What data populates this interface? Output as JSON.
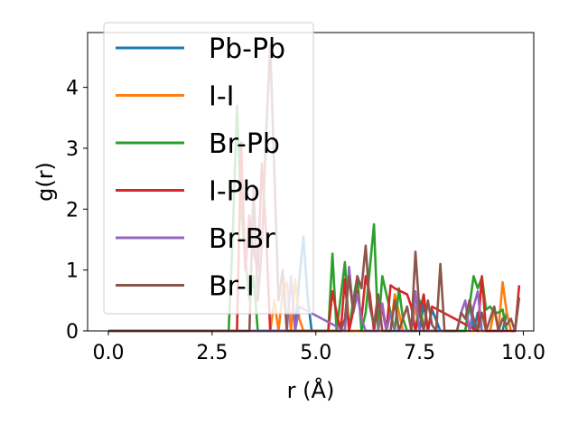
{
  "chart_data": {
    "type": "line",
    "xlabel": "r (Å)",
    "ylabel": "g(r)",
    "xlim": [
      -0.5,
      10.25
    ],
    "ylim": [
      0,
      4.9
    ],
    "xticks": [
      "0.0",
      "2.5",
      "5.0",
      "7.5",
      "10.0"
    ],
    "xtick_values": [
      0,
      2.5,
      5,
      7.5,
      10
    ],
    "yticks": [
      "0",
      "1",
      "2",
      "3",
      "4"
    ],
    "ytick_values": [
      0,
      1,
      2,
      3,
      4
    ],
    "grid": false,
    "legend_position": "upper-left",
    "series": [
      {
        "name": "Pb-Pb",
        "color": "#1f77b4",
        "x": [
          0,
          2.9,
          4.5,
          4.6,
          4.7,
          4.8,
          4.9,
          7.5,
          7.6,
          7.7,
          7.8,
          8.0,
          8.2,
          8.6,
          8.7,
          8.8,
          8.9,
          9.0,
          9.1,
          9.5,
          9.6,
          9.7,
          9.8
        ],
        "y": [
          0,
          0,
          0,
          0.85,
          1.55,
          0.55,
          0,
          0,
          0.45,
          0,
          0.35,
          0,
          0,
          0,
          0.5,
          0,
          0.3,
          0,
          0,
          0,
          0.3,
          0,
          0
        ]
      },
      {
        "name": "I-I",
        "color": "#ff7f0e",
        "x": [
          0,
          3.9,
          4.0,
          4.1,
          4.2,
          4.3,
          4.4,
          4.5,
          4.6,
          4.7,
          6.8,
          6.9,
          7.0,
          7.1,
          7.3,
          7.4,
          7.5,
          9.2,
          9.3,
          9.4,
          9.5,
          9.6,
          9.7,
          9.8
        ],
        "y": [
          0,
          0,
          0.5,
          0,
          0.65,
          0.8,
          0,
          0.85,
          0.2,
          0,
          0,
          0.6,
          0.3,
          0,
          0,
          0.4,
          0,
          0,
          0.35,
          0,
          0.8,
          0.3,
          0,
          0
        ]
      },
      {
        "name": "Br-Pb",
        "color": "#2ca02c",
        "x": [
          0,
          2.9,
          3.0,
          3.1,
          3.2,
          3.3,
          3.4,
          3.5,
          3.6,
          5.3,
          5.4,
          5.5,
          5.7,
          5.8,
          5.9,
          6.0,
          6.1,
          6.2,
          6.4,
          6.5,
          6.6,
          6.9,
          7.0,
          7.1,
          7.2,
          7.4,
          7.5,
          7.6,
          8.6,
          8.7,
          8.8,
          8.9,
          9.0,
          9.1,
          9.2,
          9.3,
          9.4,
          9.5,
          9.6
        ],
        "y": [
          0,
          0,
          1.6,
          3.7,
          2.0,
          1.2,
          0.5,
          0.9,
          0,
          0,
          1.27,
          0,
          1.13,
          0,
          0.5,
          0.9,
          0,
          0.3,
          1.75,
          0,
          0.9,
          0,
          0.7,
          0.2,
          0,
          0,
          0.5,
          0,
          0,
          0.4,
          0.9,
          0.7,
          0.88,
          0.35,
          0.4,
          0.3,
          0.3,
          0.35,
          0
        ]
      },
      {
        "name": "I-Pb",
        "color": "#d62728",
        "x": [
          0,
          3.1,
          3.2,
          3.3,
          3.4,
          3.5,
          3.6,
          3.7,
          3.8,
          3.9,
          5.3,
          5.4,
          5.5,
          5.6,
          5.7,
          5.8,
          6.0,
          6.1,
          6.2,
          6.3,
          6.4,
          6.5,
          6.6,
          6.7,
          6.8,
          6.9,
          7.2,
          7.3,
          7.4,
          7.6,
          7.7,
          7.8,
          8.9,
          9.0,
          9.1,
          9.8,
          9.9
        ],
        "y": [
          0,
          0,
          3.1,
          1.0,
          1.9,
          1.3,
          1.0,
          2.75,
          1.6,
          0,
          0,
          0.65,
          0.3,
          0,
          0.85,
          0,
          0.65,
          0.2,
          0.9,
          0.6,
          0,
          0.5,
          0.35,
          0,
          0.75,
          0.7,
          0.6,
          0.4,
          0,
          0.6,
          0,
          0.4,
          0,
          0.9,
          0,
          0,
          0.75
        ]
      },
      {
        "name": "Br-Br",
        "color": "#9467bd",
        "x": [
          0,
          4.3,
          4.4,
          4.5,
          4.6,
          5.7,
          5.8,
          5.9,
          6.0,
          6.1,
          6.2,
          6.5,
          6.6,
          6.7,
          6.8,
          6.9,
          7.3,
          7.4,
          7.5,
          8.4,
          8.5,
          8.6,
          8.7,
          8.8,
          8.9,
          9.0
        ],
        "y": [
          0,
          0,
          0.9,
          0,
          0.4,
          0,
          1.05,
          0.3,
          0.6,
          0.2,
          0,
          0,
          0.45,
          0,
          0.3,
          0,
          0,
          0.65,
          0,
          0,
          0.3,
          0.5,
          0,
          0.4,
          0.65,
          0
        ]
      },
      {
        "name": "Br-I",
        "color": "#8c564b",
        "x": [
          0,
          3.4,
          3.5,
          3.6,
          3.7,
          3.8,
          3.9,
          4.0,
          4.1,
          4.2,
          4.3,
          5.6,
          5.7,
          5.8,
          5.9,
          6.0,
          6.1,
          6.2,
          6.3,
          6.4,
          6.5,
          6.6,
          6.8,
          6.9,
          7.0,
          7.1,
          7.2,
          7.3,
          7.4,
          7.5,
          7.6,
          7.7,
          7.8,
          7.9,
          8.0,
          8.1,
          8.4,
          8.5,
          8.6,
          8.7,
          8.8,
          8.9,
          9.0,
          9.1,
          9.2,
          9.3,
          9.4,
          9.5,
          9.6,
          9.7,
          9.8,
          9.9
        ],
        "y": [
          0,
          0,
          2.4,
          0.5,
          1.4,
          3.2,
          4.7,
          2.6,
          0.5,
          1.0,
          0,
          0,
          0.2,
          0.9,
          0.3,
          0.9,
          0.7,
          1.4,
          0.4,
          0.1,
          0.6,
          0,
          0,
          0.5,
          0,
          0.2,
          0.4,
          0,
          1.3,
          0.3,
          0,
          0.5,
          0.1,
          0,
          1.1,
          0,
          0,
          0.3,
          0.2,
          0.5,
          0.2,
          0,
          0.3,
          0,
          0.2,
          0.4,
          0,
          0.2,
          0.1,
          0.2,
          0,
          0.55
        ]
      }
    ]
  }
}
